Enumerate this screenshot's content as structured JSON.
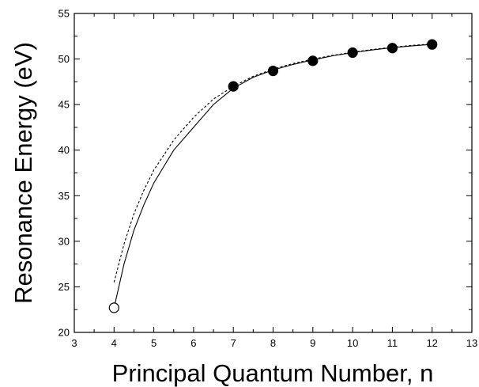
{
  "chart_data": {
    "type": "scatter",
    "title": "",
    "xlabel": "Principal Quantum Number, n",
    "ylabel": "Resonance Energy (eV)",
    "xlim": [
      3,
      13
    ],
    "ylim": [
      20,
      55
    ],
    "xticks": [
      3,
      4,
      5,
      6,
      7,
      8,
      9,
      10,
      11,
      12,
      13
    ],
    "yticks": [
      20,
      25,
      30,
      35,
      40,
      45,
      50,
      55
    ],
    "grid": false,
    "legend": "none",
    "series": [
      {
        "kind": "points",
        "marker": "open-circle",
        "x": [
          4
        ],
        "y": [
          22.7
        ]
      },
      {
        "kind": "points",
        "marker": "filled-circle",
        "x": [
          7,
          8,
          9,
          10,
          11,
          12
        ],
        "y": [
          47.0,
          48.7,
          49.8,
          50.7,
          51.2,
          51.6
        ]
      },
      {
        "kind": "line",
        "style": "solid",
        "x": [
          4.0,
          4.25,
          4.5,
          4.75,
          5.0,
          5.5,
          6.0,
          6.5,
          7.0,
          7.5,
          8.0,
          8.5,
          9.0,
          9.5,
          10.0,
          10.5,
          11.0,
          11.5,
          12.0
        ],
        "y": [
          22.7,
          27.5,
          31.2,
          34.0,
          36.4,
          40.0,
          42.5,
          45.0,
          46.8,
          48.0,
          48.8,
          49.4,
          49.9,
          50.35,
          50.7,
          51.0,
          51.25,
          51.45,
          51.6
        ]
      },
      {
        "kind": "line",
        "style": "dashed",
        "x": [
          4.0,
          4.25,
          4.5,
          4.75,
          5.0,
          5.5,
          6.0,
          6.5,
          7.0,
          7.5,
          8.0,
          8.5,
          9.0,
          9.5,
          10.0,
          10.5,
          11.0,
          11.5,
          12.0
        ],
        "y": [
          25.5,
          29.7,
          33.0,
          35.6,
          37.8,
          41.1,
          43.6,
          45.6,
          47.0,
          48.1,
          48.9,
          49.5,
          50.0,
          50.4,
          50.75,
          51.05,
          51.3,
          51.5,
          51.65
        ]
      }
    ]
  }
}
